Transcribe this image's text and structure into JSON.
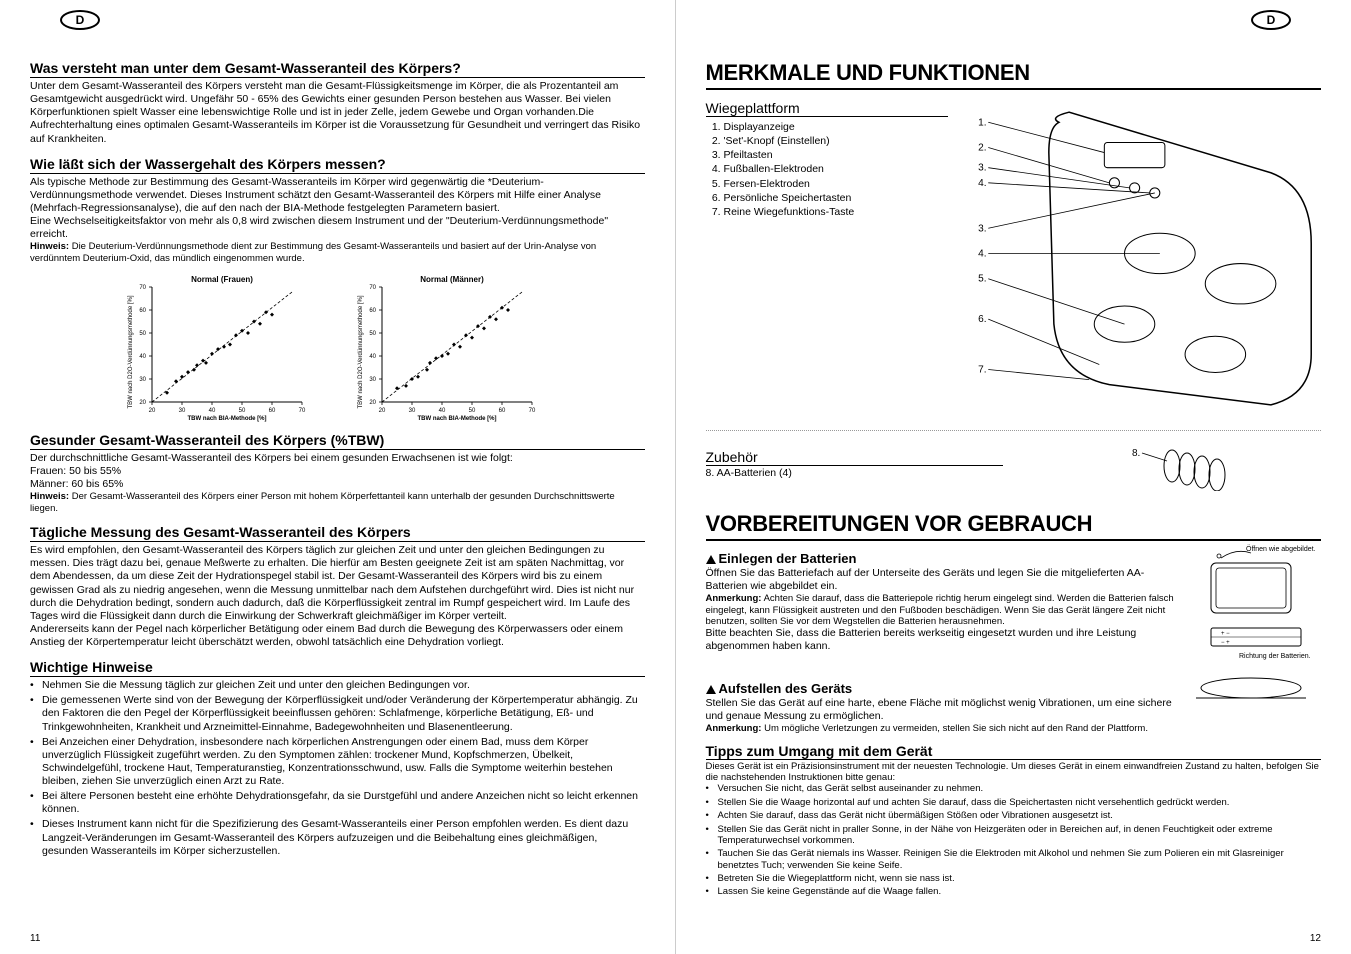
{
  "badges": {
    "left": "D",
    "right": "D"
  },
  "left_page": {
    "section1": {
      "heading": "Was versteht man unter dem Gesamt-Wasseranteil des Körpers?",
      "body": "Unter dem Gesamt-Wasseranteil des Körpers versteht man die Gesamt-Flüssigkeitsmenge im Körper, die als Prozentanteil am Gesamtgewicht ausgedrückt wird. Ungefähr 50 - 65% des Gewichts einer gesunden Person bestehen aus Wasser. Bei vielen Körperfunktionen spielt Wasser eine lebenswichtige Rolle und ist in jeder Zelle, jedem Gewebe und Organ vorhanden.Die Aufrechterhaltung eines optimalen Gesamt-Wasseranteils im Körper ist die Voraussetzung für Gesundheit und verringert das Risiko auf Krankheiten."
    },
    "section2": {
      "heading": "Wie läßt sich der Wassergehalt des Körpers messen?",
      "body": "Als typische Methode zur Bestimmung des Gesamt-Wasseranteils im Körper wird gegenwärtig die *Deuterium-Verdünnungsmethode verwendet. Dieses Instrument schätzt den Gesamt-Wasseranteil des Körpers mit Hilfe einer Analyse (Mehrfach-Regressionsanalyse), die auf den nach der BIA-Methode festgelegten Parametern basiert.\nEine Wechselseitigkeitsfaktor von mehr als 0,8 wird zwischen diesem Instrument und der \"Deuterium-Verdünnungsmethode\" erreicht.",
      "note_label": "Hinweis:",
      "note": " Die Deuterium-Verdünnungsmethode dient zur Bestimmung des Gesamt-Wasseranteils und basiert auf der Urin-Analyse von verdünntem Deuterium-Oxid, das mündlich eingenommen wurde."
    },
    "charts": {
      "left_title": "Normal (Frauen)",
      "right_title": "Normal (Männer)",
      "y_label": "TBW nach D2O-Verdünnungsmethode [%]",
      "x_label": "TBW nach BIA-Methode [%]",
      "x_ticks": [
        20,
        30,
        40,
        50,
        60,
        70
      ],
      "y_ticks": [
        20,
        30,
        40,
        50,
        60,
        70
      ],
      "xlim": [
        20,
        70
      ],
      "ylim": [
        20,
        70
      ],
      "background_color": "#ffffff",
      "line_color": "#000000",
      "marker_style": "diamond",
      "marker_size": 3,
      "left_points": [
        [
          25,
          24
        ],
        [
          28,
          29
        ],
        [
          30,
          31
        ],
        [
          32,
          33
        ],
        [
          34,
          34
        ],
        [
          35,
          36
        ],
        [
          37,
          38
        ],
        [
          38,
          37
        ],
        [
          40,
          41
        ],
        [
          42,
          43
        ],
        [
          44,
          44
        ],
        [
          46,
          45
        ],
        [
          48,
          49
        ],
        [
          50,
          51
        ],
        [
          52,
          50
        ],
        [
          54,
          55
        ],
        [
          56,
          54
        ],
        [
          58,
          59
        ],
        [
          60,
          58
        ]
      ],
      "right_points": [
        [
          25,
          26
        ],
        [
          28,
          27
        ],
        [
          30,
          30
        ],
        [
          32,
          31
        ],
        [
          35,
          34
        ],
        [
          36,
          37
        ],
        [
          38,
          39
        ],
        [
          40,
          40
        ],
        [
          42,
          41
        ],
        [
          44,
          45
        ],
        [
          46,
          44
        ],
        [
          48,
          49
        ],
        [
          50,
          48
        ],
        [
          52,
          53
        ],
        [
          54,
          52
        ],
        [
          56,
          57
        ],
        [
          58,
          56
        ],
        [
          60,
          61
        ],
        [
          62,
          60
        ]
      ]
    },
    "section3": {
      "heading": "Gesunder Gesamt-Wasseranteil des Körpers (%TBW)",
      "body": "Der durchschnittliche Gesamt-Wasseranteil des Körpers bei einem gesunden Erwachsenen ist wie folgt:",
      "women": "Frauen: 50 bis 55%",
      "men": "Männer: 60 bis 65%",
      "note_label": "Hinweis:",
      "note": " Der Gesamt-Wasseranteil des Körpers einer Person mit hohem Körperfettanteil kann unterhalb der gesunden Durchschnittswerte liegen."
    },
    "section4": {
      "heading": "Tägliche Messung des Gesamt-Wasseranteil des Körpers",
      "body": "Es wird empfohlen, den Gesamt-Wasseranteil des Körpers täglich zur gleichen Zeit und unter den gleichen Bedingungen zu messen. Dies trägt dazu bei, genaue Meßwerte zu erhalten. Die hierfür am Besten geeignete Zeit ist am späten Nachmittag, vor dem Abendessen, da um diese Zeit der Hydrationspegel stabil ist. Der Gesamt-Wasseranteil des Körpers wird bis zu einem gewissen Grad als zu niedrig angesehen, wenn die Messung unmittelbar nach dem Aufstehen durchgeführt wird. Dies ist nicht nur durch die Dehydration bedingt, sondern auch dadurch, daß die Körperflüssigkeit zentral im Rumpf gespeichert wird. Im Laufe des Tages wird die Flüssigkeit dann durch die Einwirkung der Schwerkraft gleichmäßiger im Körper verteilt.\nAndererseits kann der Pegel nach körperlicher Betätigung oder einem Bad durch die Bewegung des Körperwassers oder einem Anstieg der Körpertemperatur leicht überschätzt werden, obwohl tatsächlich eine Dehydration vorliegt."
    },
    "section5": {
      "heading": "Wichtige Hinweise",
      "bullets": [
        "Nehmen Sie die Messung täglich zur gleichen Zeit und unter den gleichen Bedingungen vor.",
        "Die gemessenen Werte sind von der Bewegung der Körperflüssigkeit und/oder Veränderung der Körpertemperatur abhängig. Zu den Faktoren die den Pegel der Körperflüssigkeit beeinflussen gehören: Schlafmenge, körperliche Betätigung, Eß- und Trinkgewohnheiten, Krankheit und Arzneimittel-Einnahme, Badegewohnheiten und Blasenentleerung.",
        "Bei Anzeichen einer Dehydration, insbesondere nach körperlichen Anstrengungen oder einem Bad, muss dem Körper unverzüglich  Flüssigkeit zugeführt werden. Zu den Symptomen zählen: trockener Mund, Kopfschmerzen, Übelkeit, Schwindelgefühl, trockene Haut, Temperaturanstieg, Konzentrationsschwund, usw. Falls die Symptome weiterhin bestehen bleiben, ziehen Sie unverzüglich einen Arzt zu Rate.",
        "Bei ältere Personen  besteht eine erhöhte Dehydrationsgefahr, da sie Durstgefühl und andere Anzeichen nicht so leicht erkennen können.",
        "Dieses Instrument kann nicht für die Spezifizierung des Gesamt-Wasseranteils einer Person empfohlen werden. Es dient dazu Langzeit-Veränderungen im Gesamt-Wasseranteil des Körpers aufzuzeigen und die Beibehaltung eines gleichmäßigen, gesunden Wasseranteils im Körper sicherzustellen."
      ]
    },
    "page_number": "11"
  },
  "right_page": {
    "section1": {
      "heading": "MERKMALE UND FUNKTIONEN",
      "sub1": "Wiegeplattform",
      "items": [
        "Displayanzeige",
        "'Set'-Knopf (Einstellen)",
        "Pfeiltasten",
        "Fußballen-Elektroden",
        "Fersen-Elektroden",
        "Persönliche Speichertasten",
        "Reine Wiegefunktions-Taste"
      ],
      "sub2": "Zubehör",
      "accessory_item": "AA-Batterien (4)",
      "diagram_labels": [
        "1.",
        "2.",
        "3.",
        "4.",
        "3.",
        "4.",
        "5.",
        "6.",
        "7.",
        "8."
      ]
    },
    "section2": {
      "heading": "VORBEREITUNGEN VOR GEBRAUCH",
      "sub1": "Einlegen der Batterien",
      "body1": "Öffnen Sie das Batteriefach auf der Unterseite des Geräts und legen Sie die mitgelieferten AA-Batterien wie abgebildet ein.",
      "note1_label": "Anmerkung:",
      "note1": " Achten Sie darauf, dass die Batteriepole richtig herum eingelegt sind. Werden die Batterien falsch eingelegt, kann Flüssigkeit austreten und den Fußboden beschädigen. Wenn Sie das Gerät längere Zeit nicht benutzen, sollten Sie vor dem Wegstellen die Batterien herausnehmen.",
      "body1b": "Bitte beachten Sie, dass die Batterien bereits werkseitig eingesetzt wurden und ihre Leistung abgenommen haben kann.",
      "img_label1": "Öffnen wie abgebildet.",
      "img_label2": "Richtung der Batterien.",
      "sub2": "Aufstellen des Geräts",
      "body2": "Stellen Sie das Gerät auf eine harte, ebene Fläche mit möglichst wenig Vibrationen, um eine sichere und genaue Messung zu ermöglichen.",
      "note2_label": "Anmerkung:",
      "note2": " Um mögliche Verletzungen zu vermeiden, stellen Sie sich nicht auf den Rand der Plattform.",
      "sub3": "Tipps zum Umgang mit dem Gerät",
      "body3": "Dieses Gerät ist ein Präzisionsinstrument mit der neuesten Technologie. Um dieses Gerät in einem einwandfreien Zustand zu halten, befolgen Sie die nachstehenden Instruktionen bitte genau:",
      "bullets3": [
        "Versuchen Sie nicht, das Gerät selbst auseinander zu nehmen.",
        "Stellen Sie die Waage horizontal auf und achten Sie darauf, dass die Speichertasten nicht versehentlich gedrückt werden.",
        "Achten Sie darauf, dass das Gerät nicht übermäßigen Stößen oder Vibrationen ausgesetzt ist.",
        "Stellen Sie das Gerät nicht in praller Sonne, in der Nähe von Heizgeräten oder in Bereichen auf, in denen Feuchtigkeit oder extreme Temperaturwechsel vorkommen.",
        "Tauchen Sie das Gerät niemals ins Wasser. Reinigen Sie die Elektroden mit Alkohol und nehmen Sie zum Polieren ein mit Glasreiniger benetztes Tuch; verwenden Sie keine Seife.",
        "Betreten Sie die Wiegeplattform nicht, wenn sie nass ist.",
        "Lassen Sie keine Gegenstände auf die Waage fallen."
      ]
    },
    "page_number": "12"
  }
}
